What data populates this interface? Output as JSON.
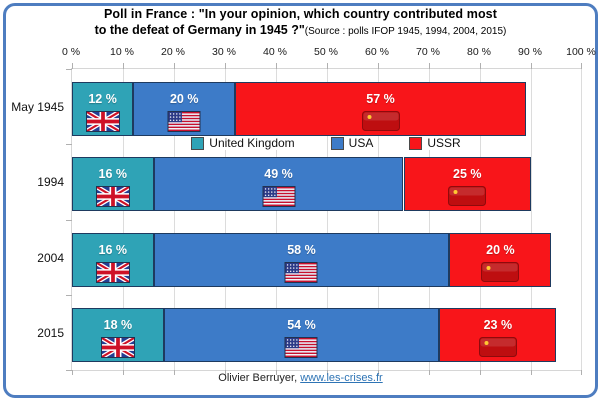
{
  "title": {
    "line1": "Poll in France : \"In your opinion, which country contributed most",
    "line2_bold": "to the defeat of Germany in 1945 ?\"",
    "line2_source": "(Source : polls IFOP 1945, 1994, 2004, 2015)"
  },
  "axis": {
    "tick_labels": [
      "0 %",
      "10 %",
      "20 %",
      "30 %",
      "40 %",
      "50 %",
      "60 %",
      "70 %",
      "80 %",
      "90 %",
      "100 %"
    ]
  },
  "footer": {
    "credit": "Olivier Berruyer,",
    "link": "www.les-crises.fr"
  },
  "colors": {
    "frame_border": "#4E7DC0",
    "bar_border": "#1E3A5F",
    "gridline": "#DCDCDC",
    "uk_teal": "#2FA3B6",
    "usa_blue": "#3D7BC8",
    "ussr_red": "#F8151A",
    "link_blue": "#2E74B5"
  },
  "chart_data": {
    "type": "bar",
    "orientation": "horizontal",
    "stacked": true,
    "title": "Poll in France : \"In your opinion, which country contributed most to the defeat of Germany in 1945 ?\"",
    "subtitle": "(Source : polls IFOP 1945, 1994, 2004, 2015)",
    "categories": [
      "May 1945",
      "1994",
      "2004",
      "2015"
    ],
    "series": [
      {
        "key": "uk",
        "name": "United Kingdom",
        "color": "#2FA3B6",
        "flag": "uk",
        "values": [
          12,
          16,
          16,
          18
        ]
      },
      {
        "key": "usa",
        "name": "USA",
        "color": "#3D7BC8",
        "flag": "usa",
        "values": [
          20,
          49,
          58,
          54
        ]
      },
      {
        "key": "ussr",
        "name": "USSR",
        "color": "#F8151A",
        "flag": "ussr",
        "values": [
          57,
          25,
          20,
          23
        ]
      }
    ],
    "value_suffix": " %",
    "xlim": [
      0,
      100
    ],
    "x_tick_step": 10,
    "grid": true,
    "legend_position": "inside-top-between-rows",
    "legend_entries": [
      "United Kingdom",
      "USA",
      "USSR"
    ]
  }
}
